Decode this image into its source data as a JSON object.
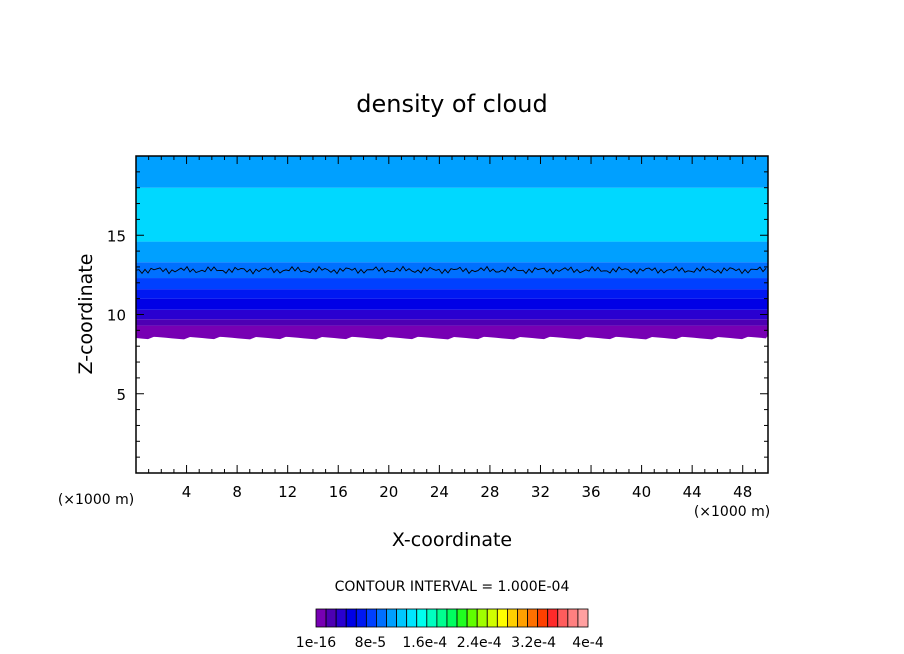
{
  "chart_data": {
    "type": "heatmap",
    "title": "density of cloud",
    "xlabel": "X-coordinate",
    "ylabel": "Z-coordinate",
    "x_unit": "(×1000 m)",
    "y_unit": "(×1000 m)",
    "xlim": [
      0,
      50
    ],
    "ylim": [
      0,
      20
    ],
    "x_ticks": [
      4,
      8,
      12,
      16,
      20,
      24,
      28,
      32,
      36,
      40,
      44,
      48
    ],
    "y_ticks": [
      5,
      10,
      15
    ],
    "contour_interval_text": "CONTOUR INTERVAL = 1.000E-04",
    "colorbar_labels": [
      "1e-16",
      "8e-5",
      "1.6e-4",
      "2.4e-4",
      "3.2e-4",
      "4e-4"
    ],
    "colorbar_colors": [
      "#7700b3",
      "#4d00b3",
      "#2a00d0",
      "#0000e6",
      "#0018f2",
      "#0040ff",
      "#0070ff",
      "#00a0ff",
      "#00c8ff",
      "#00e6ff",
      "#00ffee",
      "#00ffc0",
      "#00ff90",
      "#00ff60",
      "#20ff20",
      "#60ff00",
      "#a0ff00",
      "#d0ff00",
      "#ffff00",
      "#ffd000",
      "#ffa000",
      "#ff7000",
      "#ff4000",
      "#ff2a2a",
      "#ff5c5c",
      "#ff8080",
      "#ffa0a0"
    ],
    "layers": [
      {
        "z_bottom": 8.6,
        "z_top": 9.3,
        "color": "#7700b3"
      },
      {
        "z_bottom": 9.3,
        "z_top": 9.7,
        "color": "#4d00b3"
      },
      {
        "z_bottom": 9.7,
        "z_top": 10.3,
        "color": "#2a00d0"
      },
      {
        "z_bottom": 10.3,
        "z_top": 11.0,
        "color": "#0000e6"
      },
      {
        "z_bottom": 11.0,
        "z_top": 11.6,
        "color": "#0018f2"
      },
      {
        "z_bottom": 11.6,
        "z_top": 12.3,
        "color": "#0040ff"
      },
      {
        "z_bottom": 12.3,
        "z_top": 13.3,
        "color": "#0070ff"
      },
      {
        "z_bottom": 13.3,
        "z_top": 14.6,
        "color": "#00a0ff"
      },
      {
        "z_bottom": 14.6,
        "z_top": 18.0,
        "color": "#00d8ff"
      },
      {
        "z_bottom": 18.0,
        "z_top": 20.0,
        "color": "#00a0ff"
      }
    ],
    "contour_level_z": 12.8,
    "grid": false,
    "legend": "bottom"
  }
}
